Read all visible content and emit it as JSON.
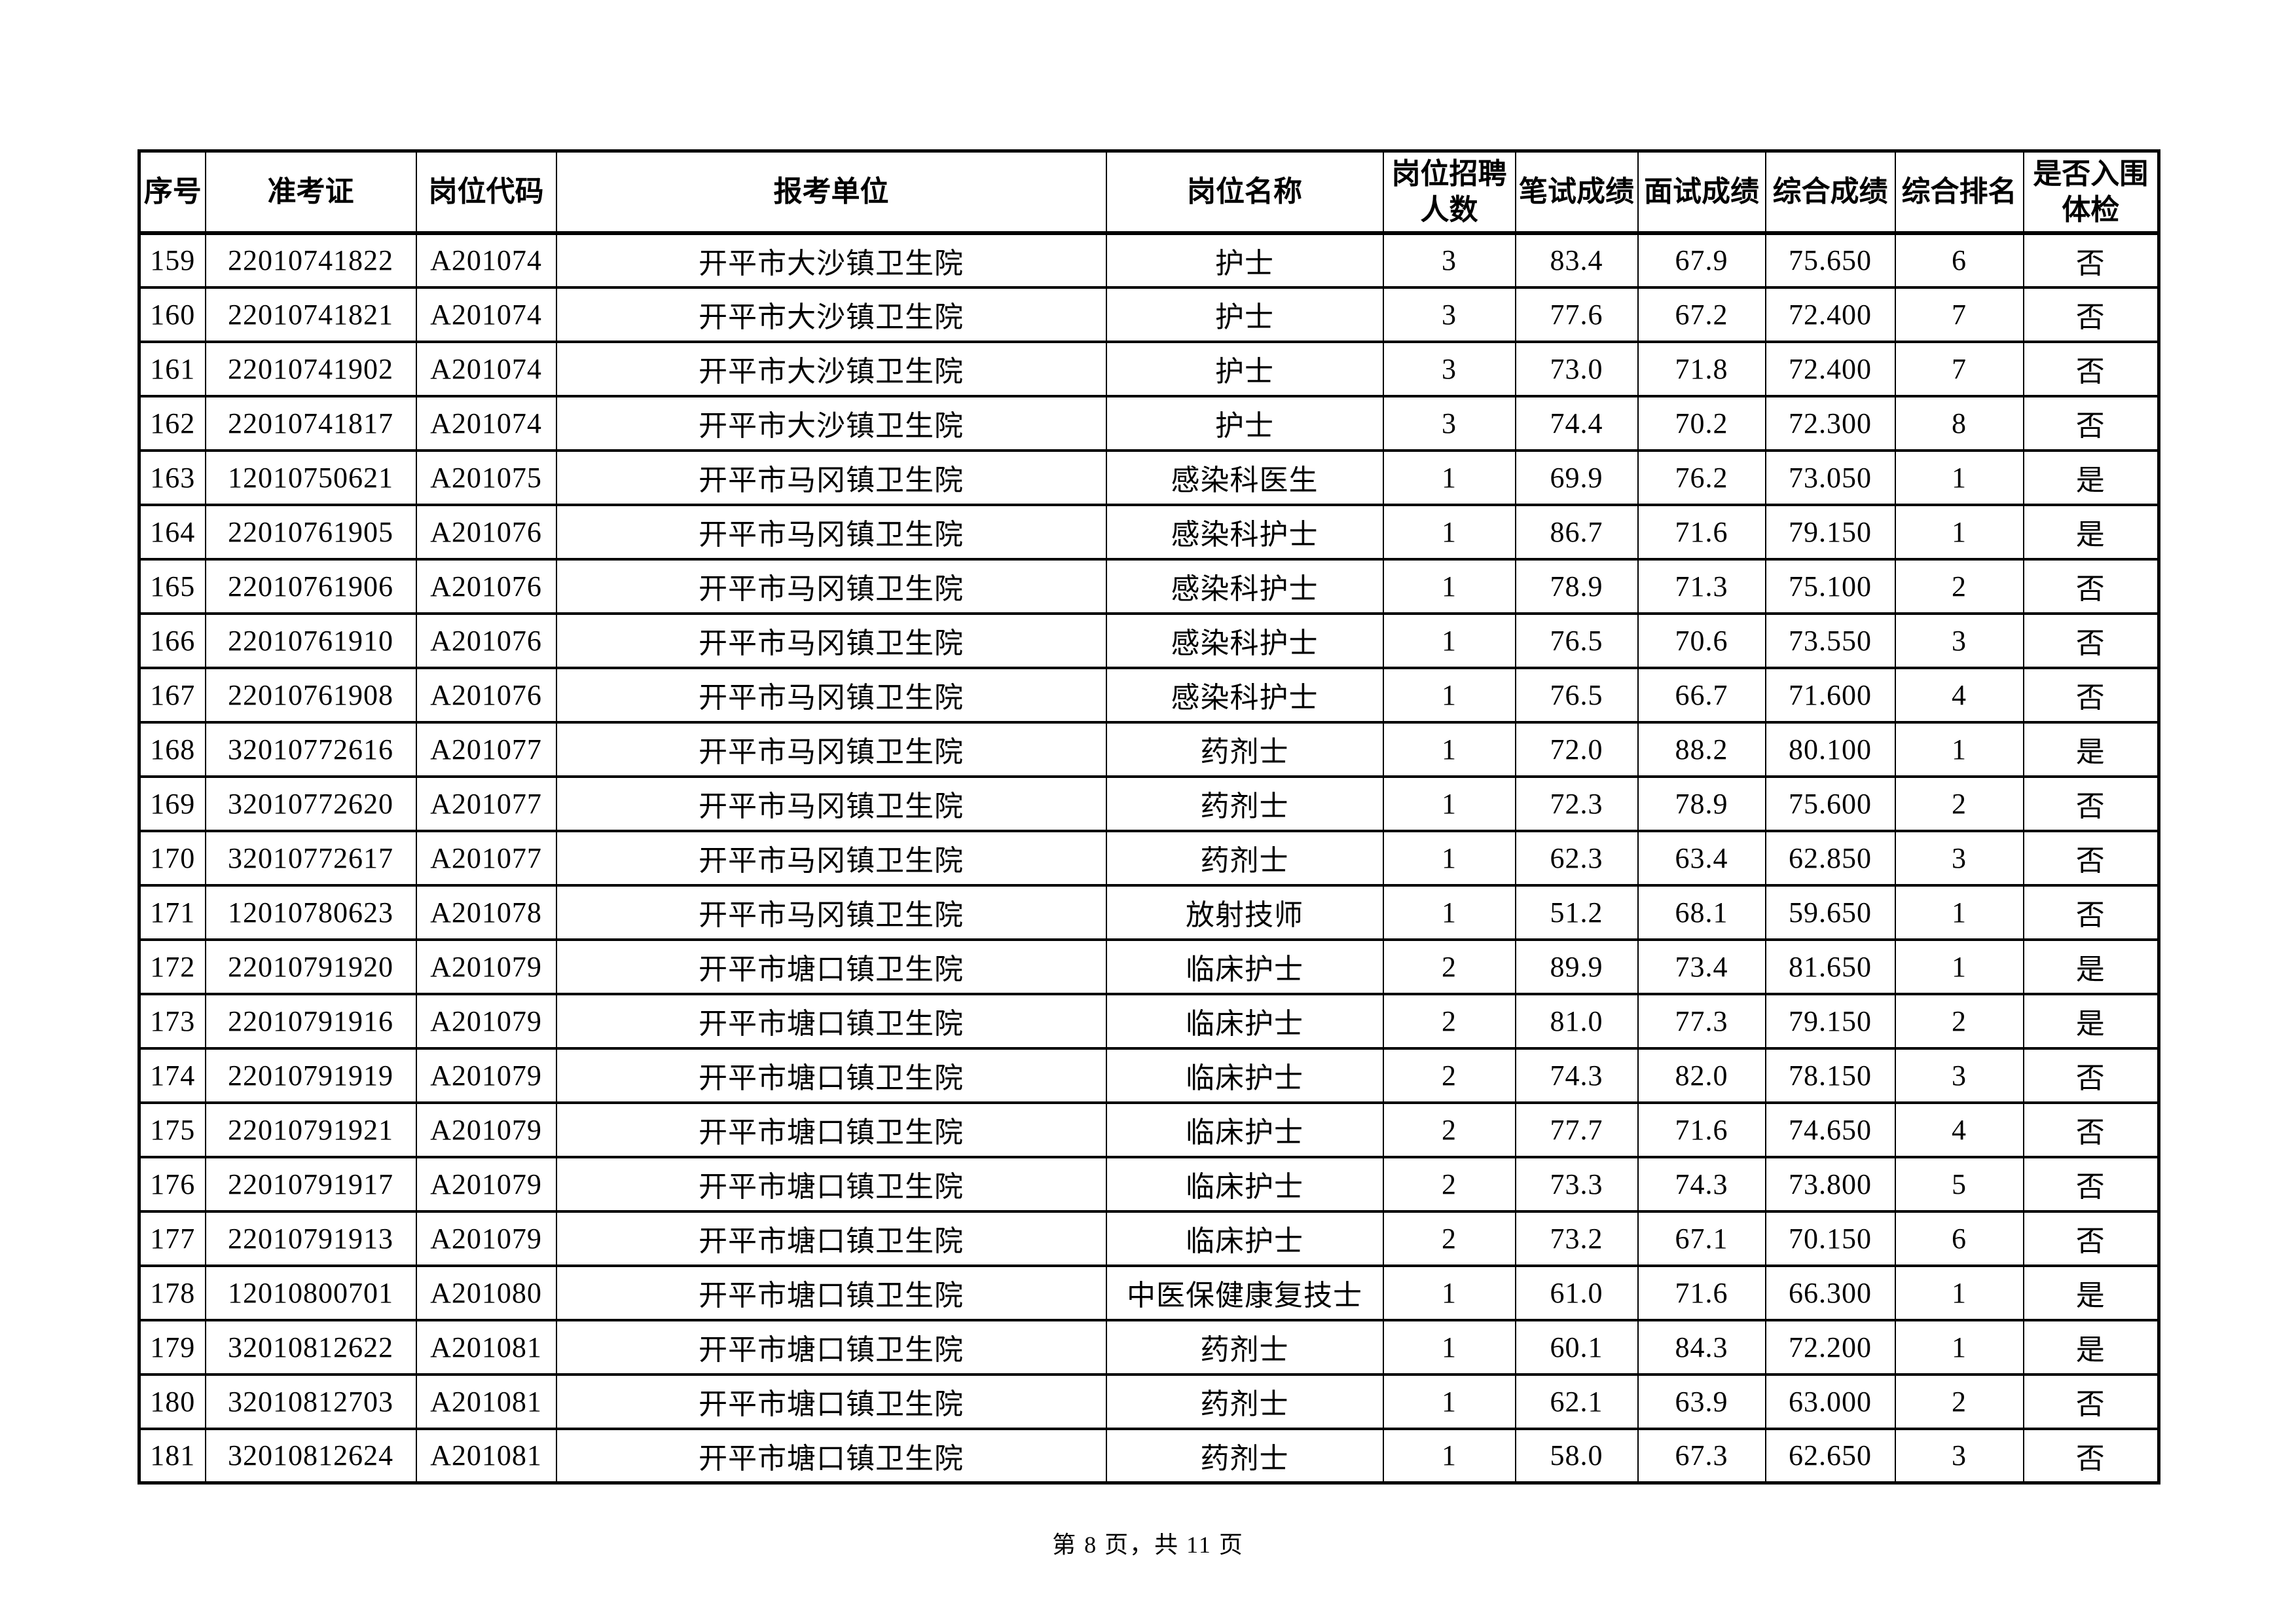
{
  "page": {
    "footer_text": "第 8 页，共 11 页"
  },
  "table": {
    "headers": [
      "序号",
      "准考证",
      "岗位代码",
      "报考单位",
      "岗位名称",
      "岗位招聘\n人数",
      "笔试成绩",
      "面试成绩",
      "综合成绩",
      "综合排名",
      "是否入围\n体检"
    ],
    "rows": [
      [
        "159",
        "22010741822",
        "A201074",
        "开平市大沙镇卫生院",
        "护士",
        "3",
        "83.4",
        "67.9",
        "75.650",
        "6",
        "否"
      ],
      [
        "160",
        "22010741821",
        "A201074",
        "开平市大沙镇卫生院",
        "护士",
        "3",
        "77.6",
        "67.2",
        "72.400",
        "7",
        "否"
      ],
      [
        "161",
        "22010741902",
        "A201074",
        "开平市大沙镇卫生院",
        "护士",
        "3",
        "73.0",
        "71.8",
        "72.400",
        "7",
        "否"
      ],
      [
        "162",
        "22010741817",
        "A201074",
        "开平市大沙镇卫生院",
        "护士",
        "3",
        "74.4",
        "70.2",
        "72.300",
        "8",
        "否"
      ],
      [
        "163",
        "12010750621",
        "A201075",
        "开平市马冈镇卫生院",
        "感染科医生",
        "1",
        "69.9",
        "76.2",
        "73.050",
        "1",
        "是"
      ],
      [
        "164",
        "22010761905",
        "A201076",
        "开平市马冈镇卫生院",
        "感染科护士",
        "1",
        "86.7",
        "71.6",
        "79.150",
        "1",
        "是"
      ],
      [
        "165",
        "22010761906",
        "A201076",
        "开平市马冈镇卫生院",
        "感染科护士",
        "1",
        "78.9",
        "71.3",
        "75.100",
        "2",
        "否"
      ],
      [
        "166",
        "22010761910",
        "A201076",
        "开平市马冈镇卫生院",
        "感染科护士",
        "1",
        "76.5",
        "70.6",
        "73.550",
        "3",
        "否"
      ],
      [
        "167",
        "22010761908",
        "A201076",
        "开平市马冈镇卫生院",
        "感染科护士",
        "1",
        "76.5",
        "66.7",
        "71.600",
        "4",
        "否"
      ],
      [
        "168",
        "32010772616",
        "A201077",
        "开平市马冈镇卫生院",
        "药剂士",
        "1",
        "72.0",
        "88.2",
        "80.100",
        "1",
        "是"
      ],
      [
        "169",
        "32010772620",
        "A201077",
        "开平市马冈镇卫生院",
        "药剂士",
        "1",
        "72.3",
        "78.9",
        "75.600",
        "2",
        "否"
      ],
      [
        "170",
        "32010772617",
        "A201077",
        "开平市马冈镇卫生院",
        "药剂士",
        "1",
        "62.3",
        "63.4",
        "62.850",
        "3",
        "否"
      ],
      [
        "171",
        "12010780623",
        "A201078",
        "开平市马冈镇卫生院",
        "放射技师",
        "1",
        "51.2",
        "68.1",
        "59.650",
        "1",
        "否"
      ],
      [
        "172",
        "22010791920",
        "A201079",
        "开平市塘口镇卫生院",
        "临床护士",
        "2",
        "89.9",
        "73.4",
        "81.650",
        "1",
        "是"
      ],
      [
        "173",
        "22010791916",
        "A201079",
        "开平市塘口镇卫生院",
        "临床护士",
        "2",
        "81.0",
        "77.3",
        "79.150",
        "2",
        "是"
      ],
      [
        "174",
        "22010791919",
        "A201079",
        "开平市塘口镇卫生院",
        "临床护士",
        "2",
        "74.3",
        "82.0",
        "78.150",
        "3",
        "否"
      ],
      [
        "175",
        "22010791921",
        "A201079",
        "开平市塘口镇卫生院",
        "临床护士",
        "2",
        "77.7",
        "71.6",
        "74.650",
        "4",
        "否"
      ],
      [
        "176",
        "22010791917",
        "A201079",
        "开平市塘口镇卫生院",
        "临床护士",
        "2",
        "73.3",
        "74.3",
        "73.800",
        "5",
        "否"
      ],
      [
        "177",
        "22010791913",
        "A201079",
        "开平市塘口镇卫生院",
        "临床护士",
        "2",
        "73.2",
        "67.1",
        "70.150",
        "6",
        "否"
      ],
      [
        "178",
        "12010800701",
        "A201080",
        "开平市塘口镇卫生院",
        "中医保健康复技士",
        "1",
        "61.0",
        "71.6",
        "66.300",
        "1",
        "是"
      ],
      [
        "179",
        "32010812622",
        "A201081",
        "开平市塘口镇卫生院",
        "药剂士",
        "1",
        "60.1",
        "84.3",
        "72.200",
        "1",
        "是"
      ],
      [
        "180",
        "32010812703",
        "A201081",
        "开平市塘口镇卫生院",
        "药剂士",
        "1",
        "62.1",
        "63.9",
        "63.000",
        "2",
        "否"
      ],
      [
        "181",
        "32010812624",
        "A201081",
        "开平市塘口镇卫生院",
        "药剂士",
        "1",
        "58.0",
        "67.3",
        "62.650",
        "3",
        "否"
      ]
    ]
  }
}
